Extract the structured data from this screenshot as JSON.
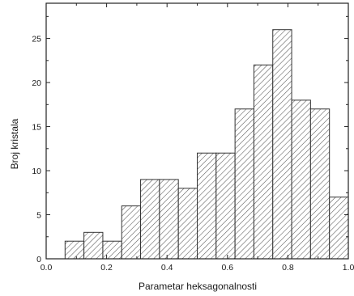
{
  "chart_data": {
    "type": "bar",
    "title": "",
    "xlabel": "Parametar heksagonalnosti",
    "ylabel": "Broj kristala",
    "xlim": [
      0.0,
      1.0
    ],
    "ylim": [
      0,
      29
    ],
    "x_ticks": [
      0.0,
      0.2,
      0.4,
      0.6,
      0.8,
      1.0
    ],
    "x_tick_labels": [
      "0.0",
      "0.2",
      "0.4",
      "0.6",
      "0.8",
      "1.0"
    ],
    "y_ticks": [
      0,
      5,
      10,
      15,
      20,
      25
    ],
    "y_tick_labels": [
      "0",
      "5",
      "10",
      "15",
      "20",
      "25"
    ],
    "bin_width": 0.0625,
    "bin_starts": [
      0.0625,
      0.125,
      0.1875,
      0.25,
      0.3125,
      0.375,
      0.4375,
      0.5,
      0.5625,
      0.625,
      0.6875,
      0.75,
      0.8125,
      0.875,
      0.9375
    ],
    "values": [
      2,
      3,
      2,
      6,
      9,
      9,
      8,
      12,
      12,
      17,
      22,
      26,
      18,
      17,
      7
    ],
    "fill": "hatched",
    "bar_edge_color": "#333333",
    "hatch_color": "#555555",
    "grid": false,
    "legend": "none"
  }
}
